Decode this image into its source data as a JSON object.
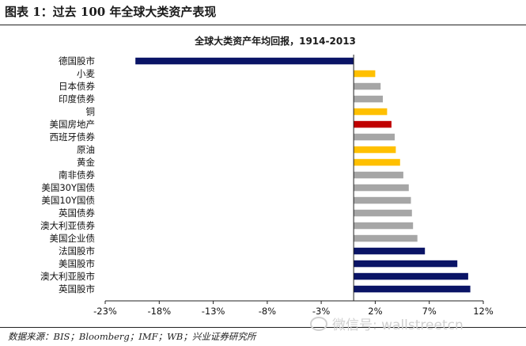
{
  "figure": {
    "title": "图表 1：过去 100 年全球大类资产表现",
    "source": "数据来源：BIS；Bloomberg；IMF；WB；兴业证券研究所",
    "watermark": "微信号: wallstreetcn"
  },
  "colors": {
    "navy": "#0a1466",
    "yellow": "#ffc000",
    "gray": "#a6a6a6",
    "red": "#c00000",
    "axis": "#222222"
  },
  "chart_data": {
    "type": "bar",
    "orientation": "horizontal",
    "title": "全球大类资产年均回报，1914-2013",
    "xlabel": "",
    "ylabel": "",
    "xlim": [
      -23,
      12
    ],
    "xticks": [
      -23,
      -18,
      -13,
      -8,
      -3,
      2,
      7,
      12
    ],
    "xtick_labels": [
      "-23%",
      "-18%",
      "-13%",
      "-8%",
      "-3%",
      "2%",
      "7%",
      "12%"
    ],
    "categories": [
      "德国股市",
      "小麦",
      "日本债券",
      "印度债券",
      "铜",
      "美国房地产",
      "西班牙债券",
      "原油",
      "黄金",
      "南非债券",
      "美国30Y国债",
      "美国10Y国债",
      "英国债券",
      "澳大利亚债券",
      "美国企业债",
      "法国股市",
      "美国股市",
      "澳大利亚股市",
      "英国股市"
    ],
    "values": [
      -20.2,
      2.0,
      2.5,
      2.7,
      3.1,
      3.5,
      3.8,
      3.9,
      4.3,
      4.6,
      5.1,
      5.3,
      5.4,
      5.5,
      5.9,
      6.6,
      9.6,
      10.6,
      10.8
    ],
    "color_keys": [
      "navy",
      "yellow",
      "gray",
      "gray",
      "yellow",
      "red",
      "gray",
      "yellow",
      "yellow",
      "gray",
      "gray",
      "gray",
      "gray",
      "gray",
      "gray",
      "navy",
      "navy",
      "navy",
      "navy"
    ],
    "grid": false,
    "legend": "none"
  }
}
